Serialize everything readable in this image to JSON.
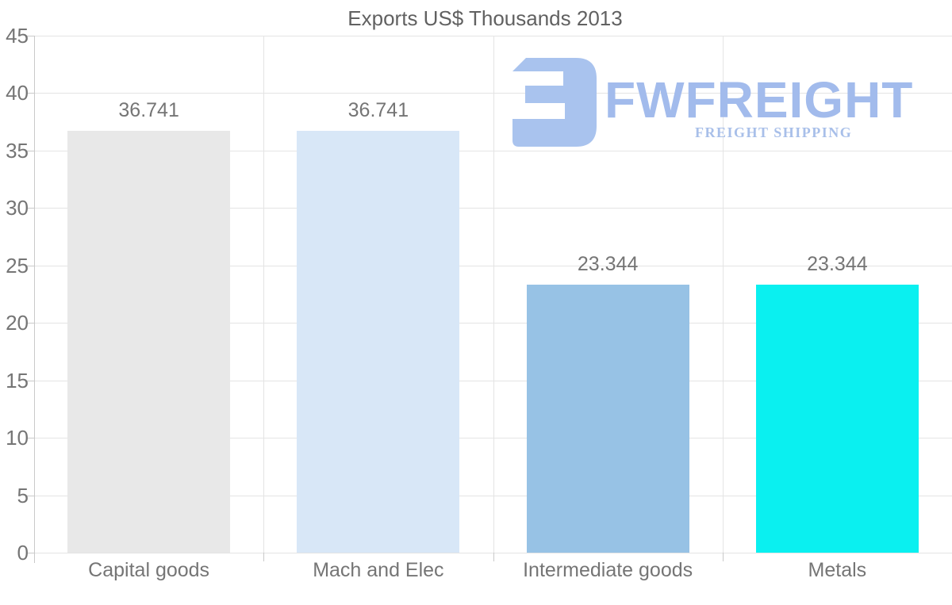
{
  "chart_data": {
    "type": "bar",
    "title": "Exports US$ Thousands 2013",
    "categories": [
      "Capital goods",
      "Mach and Elec",
      "Intermediate goods",
      "Metals"
    ],
    "values": [
      36.741,
      36.741,
      23.344,
      23.344
    ],
    "value_labels": [
      "36.741",
      "36.741",
      "23.344",
      "23.344"
    ],
    "bar_colors": [
      "#e8e8e8",
      "#d8e7f7",
      "#97c2e5",
      "#0af0f0"
    ],
    "ylabel": "",
    "xlabel": "",
    "ylim": [
      0,
      45
    ],
    "ytick_step": 5,
    "ytick_labels": [
      "0",
      "5",
      "10",
      "15",
      "20",
      "25",
      "30",
      "35",
      "40",
      "45"
    ],
    "grid": true,
    "legend": false
  },
  "watermark": {
    "brand": "FWFREIGHT",
    "tagline": "FREIGHT SHIPPING",
    "icon": "fw-logo-icon",
    "icon_color": "#a9c3ee",
    "brand_color": "#a2bbec",
    "tagline_color": "#a8bfe9"
  },
  "colors": {
    "background": "#ffffff",
    "title_text": "#616161",
    "axis_text": "#757575",
    "gridline": "#e4e4e4",
    "axis_line": "#c9c9c9"
  }
}
